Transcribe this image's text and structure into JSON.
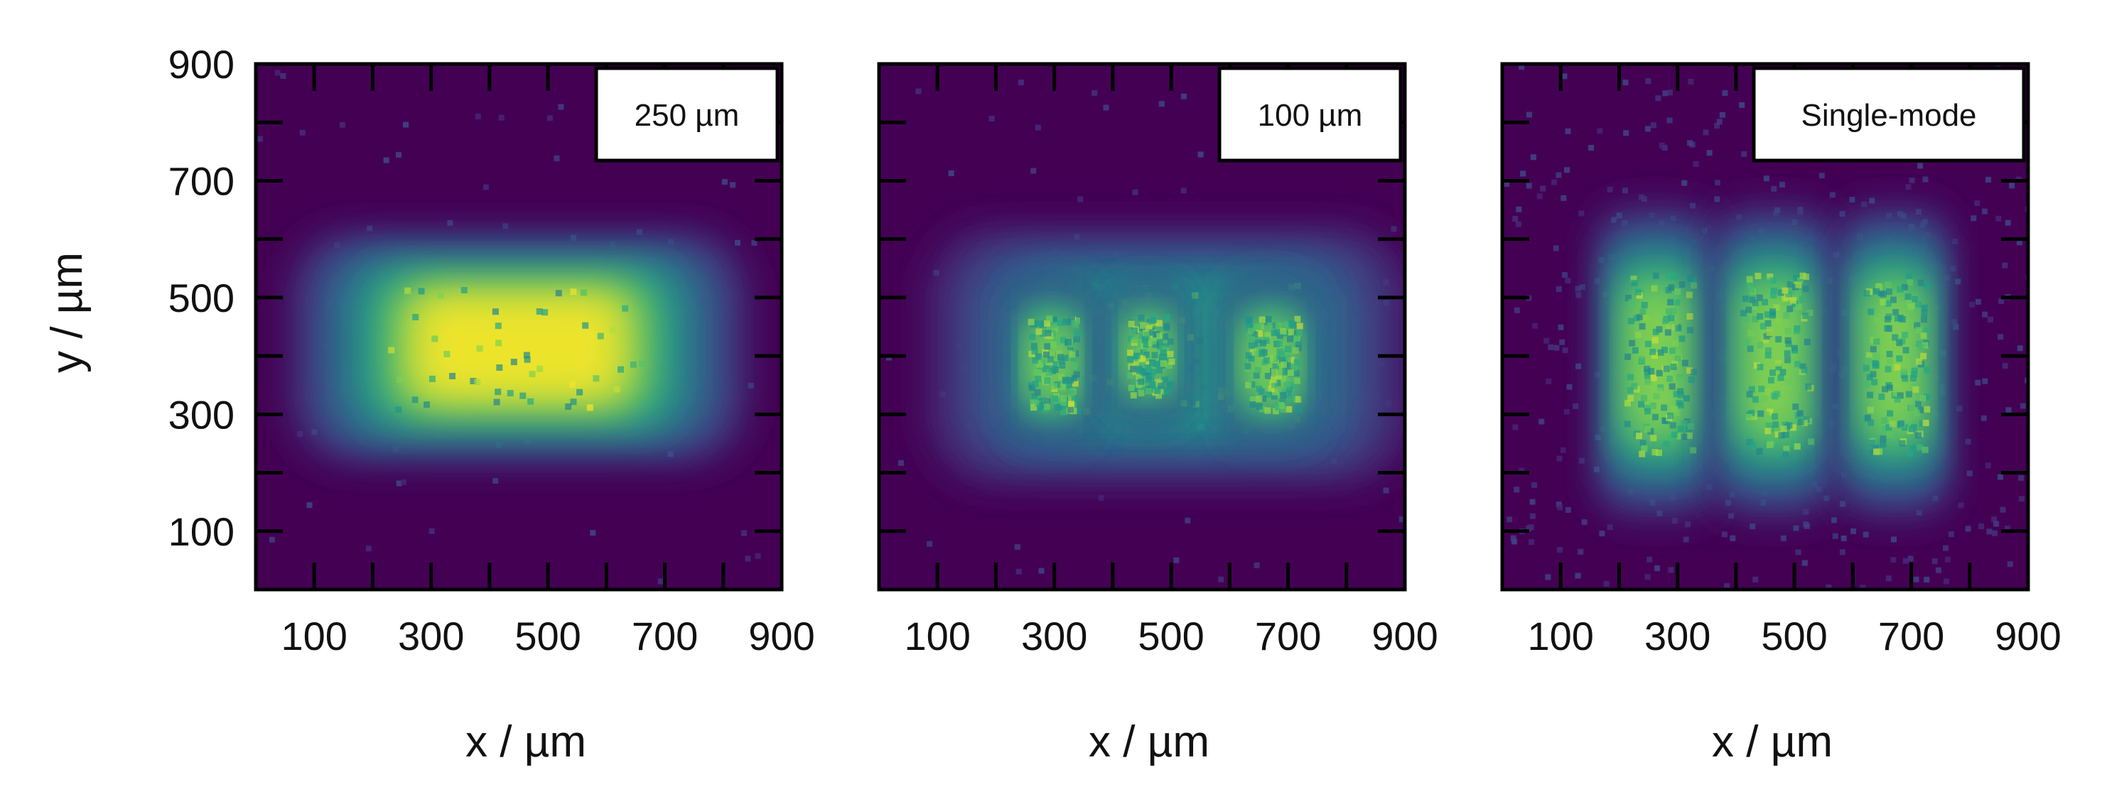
{
  "chart_data": [
    {
      "type": "heatmap",
      "label": "250 µm",
      "xlabel": "x / µm",
      "ylabel": "y / µm",
      "xlim": [
        0,
        900
      ],
      "ylim": [
        0,
        900
      ],
      "x_ticks": [
        "100",
        "300",
        "500",
        "700",
        "900"
      ],
      "y_ticks": [
        "100",
        "300",
        "500",
        "700",
        "900"
      ],
      "colormap": "viridis",
      "background": "#440154",
      "peak_color": "#fde725",
      "spots": [
        {
          "x_range": [
            200,
            700
          ],
          "y_range": [
            290,
            540
          ],
          "peak": 1.0
        }
      ]
    },
    {
      "type": "heatmap",
      "label": "100 µm",
      "xlabel": "x / µm",
      "ylabel": "",
      "xlim": [
        0,
        900
      ],
      "ylim": [
        0,
        900
      ],
      "x_ticks": [
        "100",
        "300",
        "500",
        "700",
        "900"
      ],
      "y_ticks": [],
      "colormap": "viridis",
      "background": "#440154",
      "peak_color": "#fde725",
      "spots": [
        {
          "x_range": [
            230,
            760
          ],
          "y_range": [
            260,
            540
          ],
          "peak": 0.7
        },
        {
          "x_range": [
            250,
            340
          ],
          "y_range": [
            300,
            480
          ],
          "peak": 0.9
        },
        {
          "x_range": [
            420,
            500
          ],
          "y_range": [
            330,
            480
          ],
          "peak": 0.9
        },
        {
          "x_range": [
            620,
            720
          ],
          "y_range": [
            300,
            480
          ],
          "peak": 0.9
        }
      ]
    },
    {
      "type": "heatmap",
      "label": "Single-mode",
      "xlabel": "x / µm",
      "ylabel": "",
      "xlim": [
        0,
        900
      ],
      "ylim": [
        0,
        900
      ],
      "x_ticks": [
        "100",
        "300",
        "500",
        "700",
        "900"
      ],
      "y_ticks": [],
      "colormap": "viridis",
      "background": "#440154",
      "peak_color": "#fde725",
      "spots": [
        {
          "x_range": [
            200,
            330
          ],
          "y_range": [
            220,
            560
          ],
          "peak": 0.9
        },
        {
          "x_range": [
            400,
            530
          ],
          "y_range": [
            220,
            560
          ],
          "peak": 0.9
        },
        {
          "x_range": [
            610,
            730
          ],
          "y_range": [
            220,
            560
          ],
          "peak": 0.9
        }
      ]
    }
  ]
}
